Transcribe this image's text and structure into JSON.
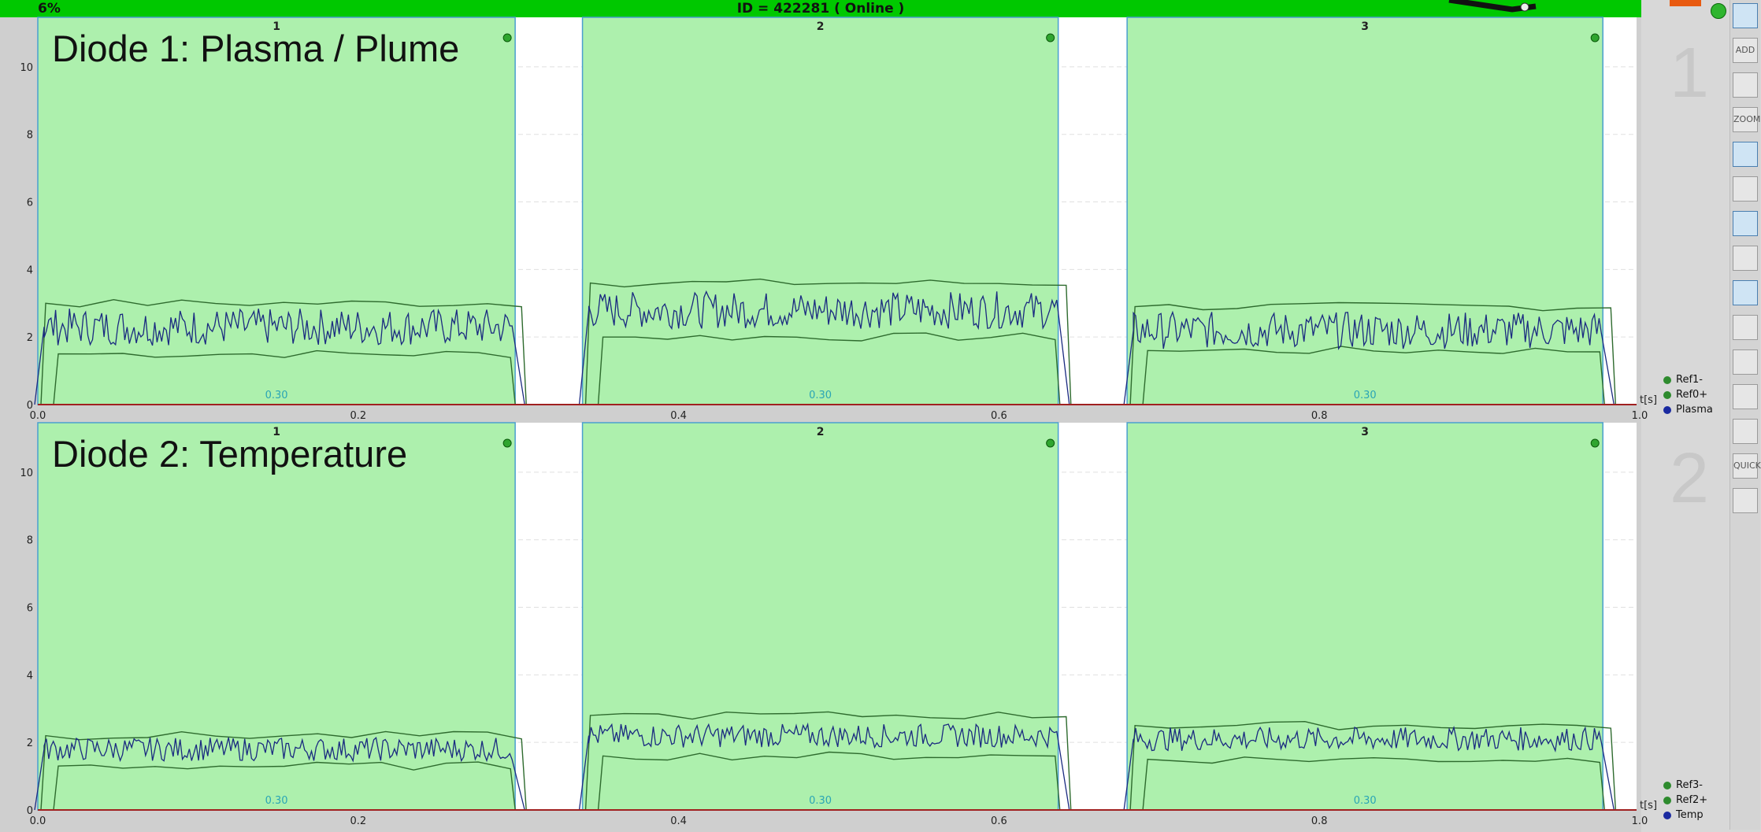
{
  "topbar": {
    "percent": "6%",
    "id_text": "ID = 422281 ( Online )"
  },
  "colors": {
    "window_fill": "#adf0ad",
    "window_border": "#4a9fcf",
    "signal": "#1a2a80",
    "envelope": "#2e6b2e",
    "baseline": "#a02020",
    "status_bar": "#00c800"
  },
  "toolbar": {
    "tools": [
      "panel-icon",
      "add-icon",
      "layout-icon",
      "zoom-icon",
      "signal-icon",
      "print-icon",
      "grid-icon",
      "cross-icon",
      "curve-icon",
      "flag-icon",
      "lock-icon",
      "tree-icon",
      "cross-icon-2",
      "quick-icon",
      "export-icon"
    ],
    "labels": {
      "add": "ADD",
      "zoom": "ZOOM",
      "quick": "QUICK"
    }
  },
  "chart_data": [
    {
      "type": "line",
      "title": "Diode 1: Plasma / Plume",
      "panel_number": "1",
      "xlabel": "t[s]",
      "xlim": [
        0,
        1.0
      ],
      "ylim": [
        0,
        11
      ],
      "xticks": [
        "0.0",
        "0.2",
        "0.4",
        "0.6",
        "0.8",
        "1.0"
      ],
      "yticks": [
        "0",
        "2",
        "4",
        "6",
        "8",
        "10"
      ],
      "windows": [
        {
          "label": "1",
          "start": 0.0,
          "end": 0.298,
          "value_label": "0.30"
        },
        {
          "label": "2",
          "start": 0.34,
          "end": 0.637,
          "value_label": "0.30"
        },
        {
          "label": "3",
          "start": 0.68,
          "end": 0.977,
          "value_label": "0.30"
        }
      ],
      "series": [
        {
          "name": "Ref1-",
          "segments": [
            {
              "x": [
                0.0,
                0.3
              ],
              "y": [
                1.5,
                1.5
              ]
            },
            {
              "x": [
                0.34,
                0.64
              ],
              "y": [
                2.0,
                2.0
              ]
            },
            {
              "x": [
                0.68,
                0.98
              ],
              "y": [
                1.6,
                1.6
              ]
            }
          ]
        },
        {
          "name": "Ref0+",
          "segments": [
            {
              "x": [
                0.0,
                0.3
              ],
              "y": [
                3.0,
                3.0
              ]
            },
            {
              "x": [
                0.34,
                0.64
              ],
              "y": [
                3.6,
                3.6
              ]
            },
            {
              "x": [
                0.68,
                0.98
              ],
              "y": [
                2.9,
                2.9
              ]
            }
          ]
        },
        {
          "name": "Plasma",
          "segments": [
            {
              "x": [
                0.0,
                0.3
              ],
              "y": [
                2.3,
                2.3
              ]
            },
            {
              "x": [
                0.34,
                0.64
              ],
              "y": [
                2.8,
                2.8
              ]
            },
            {
              "x": [
                0.68,
                0.98
              ],
              "y": [
                2.2,
                2.2
              ]
            }
          ]
        }
      ]
    },
    {
      "type": "line",
      "title": "Diode 2: Temperature",
      "panel_number": "2",
      "xlabel": "t[s]",
      "xlim": [
        0,
        1.0
      ],
      "ylim": [
        0,
        11
      ],
      "xticks": [
        "0.0",
        "0.2",
        "0.4",
        "0.6",
        "0.8",
        "1.0"
      ],
      "yticks": [
        "0",
        "2",
        "4",
        "6",
        "8",
        "10"
      ],
      "windows": [
        {
          "label": "1",
          "start": 0.0,
          "end": 0.298,
          "value_label": "0.30"
        },
        {
          "label": "2",
          "start": 0.34,
          "end": 0.637,
          "value_label": "0.30"
        },
        {
          "label": "3",
          "start": 0.68,
          "end": 0.977,
          "value_label": "0.30"
        }
      ],
      "series": [
        {
          "name": "Ref3-",
          "segments": [
            {
              "x": [
                0.0,
                0.3
              ],
              "y": [
                1.3,
                1.3
              ]
            },
            {
              "x": [
                0.34,
                0.64
              ],
              "y": [
                1.6,
                1.6
              ]
            },
            {
              "x": [
                0.68,
                0.98
              ],
              "y": [
                1.5,
                1.5
              ]
            }
          ]
        },
        {
          "name": "Ref2+",
          "segments": [
            {
              "x": [
                0.0,
                0.3
              ],
              "y": [
                2.2,
                2.2
              ]
            },
            {
              "x": [
                0.34,
                0.64
              ],
              "y": [
                2.8,
                2.8
              ]
            },
            {
              "x": [
                0.68,
                0.98
              ],
              "y": [
                2.5,
                2.5
              ]
            }
          ]
        },
        {
          "name": "Temp",
          "segments": [
            {
              "x": [
                0.0,
                0.3
              ],
              "y": [
                1.8,
                1.8
              ]
            },
            {
              "x": [
                0.34,
                0.64
              ],
              "y": [
                2.2,
                2.2
              ]
            },
            {
              "x": [
                0.68,
                0.98
              ],
              "y": [
                2.1,
                2.1
              ]
            }
          ]
        }
      ]
    }
  ]
}
